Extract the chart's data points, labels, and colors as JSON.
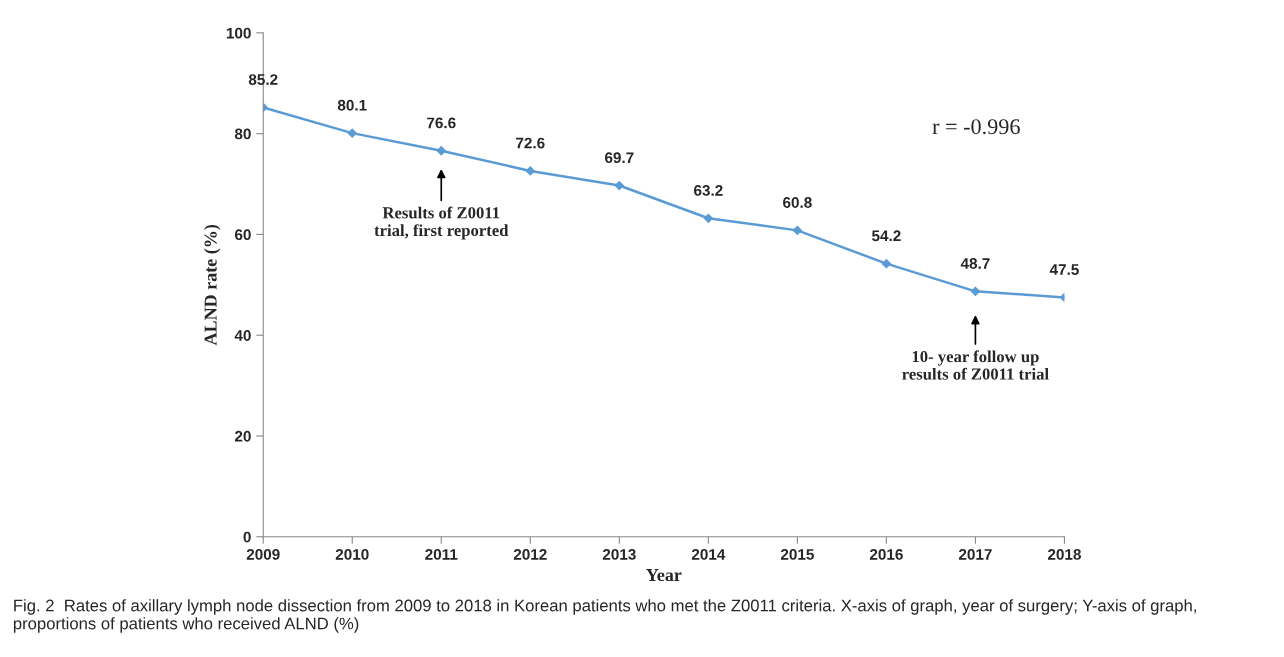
{
  "chart_data": {
    "type": "line",
    "xlabel": "Year",
    "ylabel": "ALND rate (%)",
    "x": [
      2009,
      2010,
      2011,
      2012,
      2013,
      2014,
      2015,
      2016,
      2017,
      2018
    ],
    "series": [
      {
        "color": "#5b9bd5",
        "values": [
          85.2,
          80.1,
          76.6,
          72.6,
          69.7,
          63.2,
          60.8,
          54.2,
          48.7,
          47.5
        ]
      }
    ],
    "xlim": [
      2009,
      2018
    ],
    "xticks": [
      2009,
      2010,
      2011,
      2012,
      2013,
      2014,
      2015,
      2016,
      2017,
      2018
    ],
    "ylim": [
      0,
      100
    ],
    "yticks": [
      0,
      20,
      40,
      60,
      80,
      100
    ],
    "marker": "diamond",
    "line_style": "solid",
    "data_labels": true,
    "grid": false,
    "legend": false,
    "annotations": [
      "r = -0.996",
      "Results of Z0011\ntrial, first reported",
      "10- year follow up\nresults of Z0011 trial",
      "Fig. 2  Rates of axillary lymph node dissection from 2009 to 2018 in Korean patients who met the Z0011 criteria. X-axis of graph, year of surgery; Y-axis of graph, proportions of patients who received ALND (%)"
    ]
  }
}
